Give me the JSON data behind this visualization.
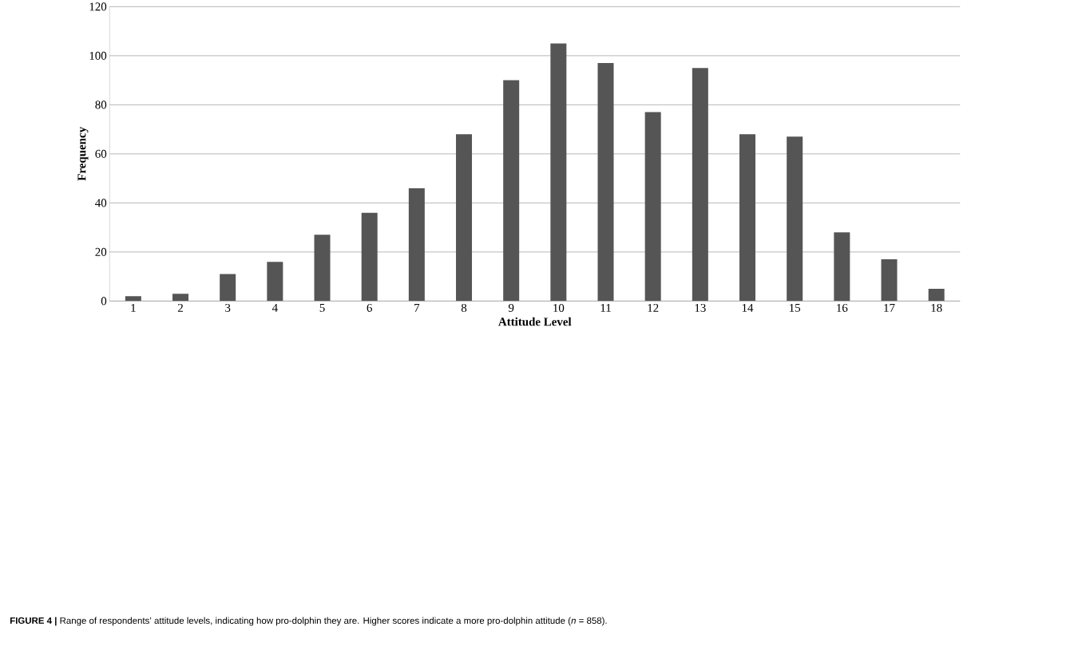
{
  "chart_data": {
    "type": "bar",
    "xlabel": "Attitude Level",
    "ylabel": "Frequency",
    "categories": [
      "1",
      "2",
      "3",
      "4",
      "5",
      "6",
      "7",
      "8",
      "9",
      "10",
      "11",
      "12",
      "13",
      "14",
      "15",
      "16",
      "17",
      "18"
    ],
    "values": [
      2,
      3,
      11,
      16,
      27,
      36,
      46,
      68,
      90,
      105,
      97,
      77,
      95,
      68,
      67,
      28,
      17,
      5
    ],
    "color": "#555555",
    "ylim": [
      0,
      120
    ],
    "yticks": [
      0,
      20,
      40,
      60,
      80,
      100,
      120
    ],
    "grid": "y",
    "annotations": [
      "**FIGURE 4 |** Range of respondents’ attitude levels, indicating how pro-dolphin they are. Higher scores indicate a more pro-dolphin attitude (*n* = 858)."
    ]
  }
}
